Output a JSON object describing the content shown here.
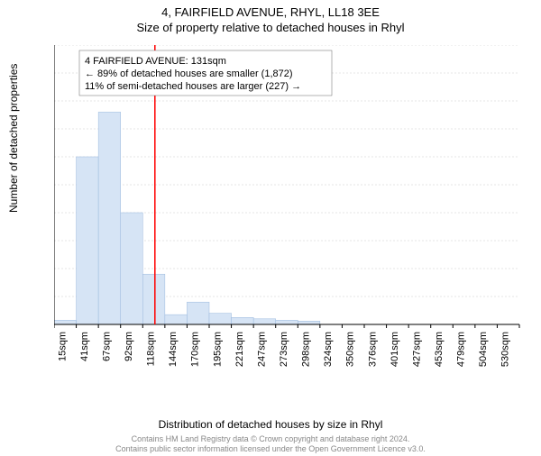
{
  "title_main": "4, FAIRFIELD AVENUE, RHYL, LL18 3EE",
  "title_sub": "Size of property relative to detached houses in Rhyl",
  "y_axis_label": "Number of detached properties",
  "x_axis_label": "Distribution of detached houses by size in Rhyl",
  "footer_line1": "Contains HM Land Registry data © Crown copyright and database right 2024.",
  "footer_line2": "Contains public sector information licensed under the Open Government Licence v3.0.",
  "chart": {
    "type": "histogram",
    "ylim": [
      0,
      1000
    ],
    "ytick_step": 100,
    "x_categories": [
      "15sqm",
      "41sqm",
      "67sqm",
      "92sqm",
      "118sqm",
      "144sqm",
      "170sqm",
      "195sqm",
      "221sqm",
      "247sqm",
      "273sqm",
      "298sqm",
      "324sqm",
      "350sqm",
      "376sqm",
      "401sqm",
      "427sqm",
      "453sqm",
      "479sqm",
      "504sqm",
      "530sqm"
    ],
    "values": [
      15,
      600,
      760,
      400,
      180,
      35,
      80,
      40,
      25,
      20,
      15,
      12,
      0,
      0,
      0,
      0,
      0,
      0,
      0,
      0,
      0
    ],
    "bar_fill": "#d6e4f5",
    "bar_stroke": "#9ab8dd",
    "background_color": "#ffffff",
    "grid_color": "#cccccc",
    "axis_color": "#000000",
    "reference_line": {
      "position_index": 4.55,
      "color": "#ff0000"
    },
    "annotation": {
      "lines": [
        "4 FAIRFIELD AVENUE: 131sqm",
        "← 89% of detached houses are smaller (1,872)",
        "11% of semi-detached houses are larger (227) →"
      ],
      "box_stroke": "#666666",
      "box_fill": "#ffffff"
    }
  }
}
